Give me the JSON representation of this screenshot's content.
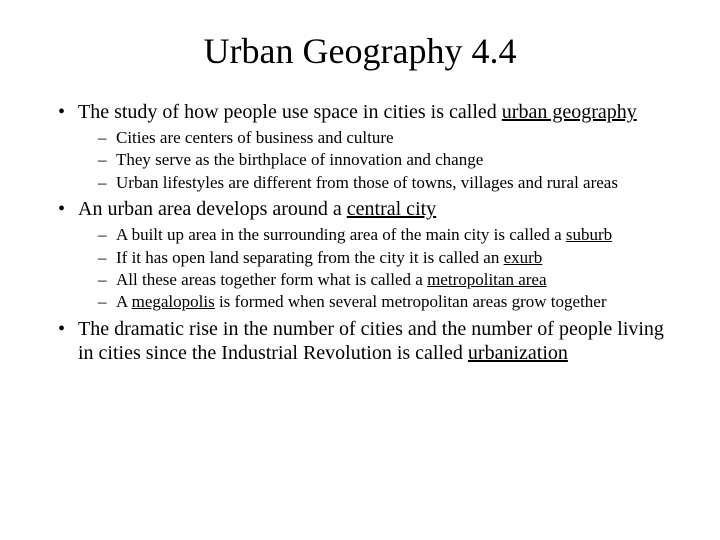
{
  "title": "Urban Geography 4.4",
  "bullets": {
    "b1": {
      "pre": "The study of how people use space in cities is called ",
      "underlined": "urban geography",
      "sub": {
        "s1": "Cities are centers of business and culture",
        "s2": "They serve as the birthplace of innovation and change",
        "s3": "Urban lifestyles are different from those of towns, villages and rural areas"
      }
    },
    "b2": {
      "pre": "An urban area develops around a ",
      "underlined": "central city",
      "sub": {
        "s1_pre": "A built up area in the surrounding  area of the main city is called a ",
        "s1_u": "suburb",
        "s2_pre": "If it has open land separating from the city it is called an ",
        "s2_u": "exurb",
        "s3_pre": "All these areas together form what is called a ",
        "s3_u": "metropolitan area",
        "s4_pre": "A ",
        "s4_u": "megalopolis",
        "s4_post": " is formed when several metropolitan areas grow together"
      }
    },
    "b3": {
      "pre": "The dramatic rise in the number of cities and the number of people living in cities since the Industrial Revolution is called ",
      "underlined": "urbanization"
    }
  },
  "style": {
    "background_color": "#ffffff",
    "text_color": "#000000",
    "title_fontsize": 36,
    "level1_fontsize": 20,
    "level2_fontsize": 17,
    "font_family": "Times New Roman"
  }
}
